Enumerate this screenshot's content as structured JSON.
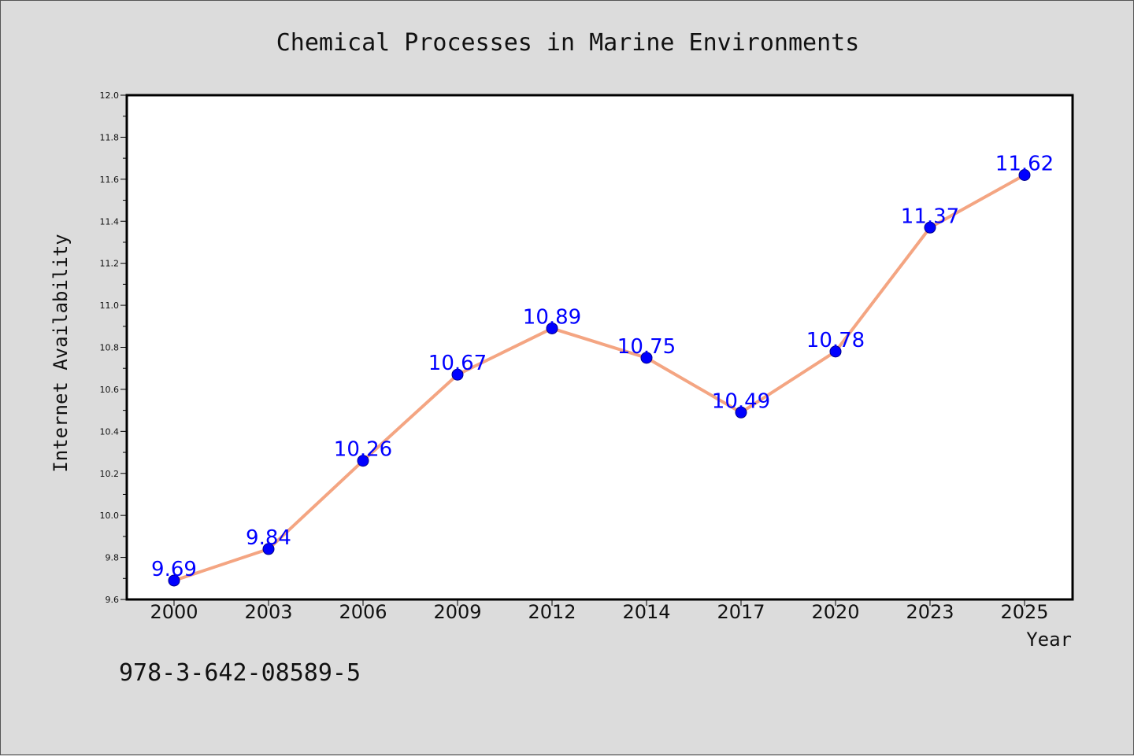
{
  "chart_data": {
    "type": "line",
    "title": "Chemical Processes in Marine Environments",
    "xlabel": "Year",
    "ylabel": "Internet Availability",
    "categories": [
      "2000",
      "2003",
      "2006",
      "2009",
      "2012",
      "2014",
      "2017",
      "2020",
      "2023",
      "2025"
    ],
    "series": [
      {
        "values": [
          9.69,
          9.84,
          10.26,
          10.67,
          10.89,
          10.75,
          10.49,
          10.78,
          11.37,
          11.62
        ]
      }
    ],
    "ylim": [
      9.6,
      12.0
    ],
    "yticks": [
      "9.6",
      "9.8",
      "10.0",
      "10.2",
      "10.4",
      "10.6",
      "10.8",
      "11.0",
      "11.2",
      "11.4",
      "11.6",
      "11.8",
      "12.0"
    ],
    "data_labels": [
      "9.69",
      "9.84",
      "10.26",
      "10.67",
      "10.89",
      "10.75",
      "10.49",
      "10.78",
      "11.37",
      "11.62"
    ],
    "grid": false,
    "legend": "none"
  },
  "footer": {
    "isbn": "978-3-642-08589-5"
  },
  "colors": {
    "background": "#dcdcdc",
    "plot_background": "#ffffff",
    "line": "#f4a582",
    "marker": "#0000ff",
    "data_label": "#0000ff"
  }
}
